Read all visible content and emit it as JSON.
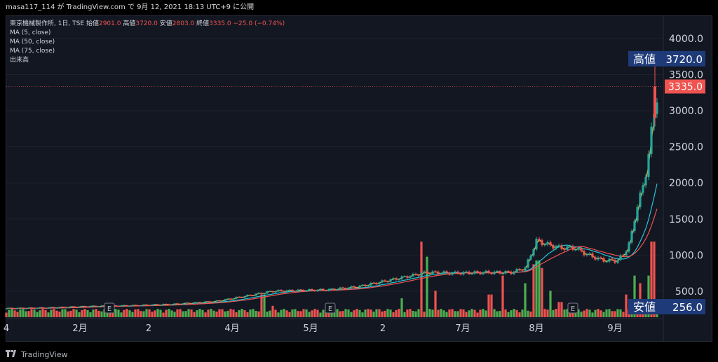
{
  "header": {
    "publish_line": "masa117_114 が TradingView.com で 9月 12, 2021 18:13 UTC+9 に公開"
  },
  "legend": {
    "symbol_line": "東京機械製作所, 1日, TSE",
    "open_label": "始値",
    "open_value": "2901.0",
    "high_label": "高値",
    "high_value": "3720.0",
    "low_label": "安値",
    "low_value": "2803.0",
    "close_label": "終値",
    "close_value": "3335.0",
    "change": "−25.0 (−0.74%)",
    "ma5": "MA (5, close)",
    "ma50": "MA (50, close)",
    "ma75": "MA (75, close)",
    "volume": "出来高"
  },
  "price_labels": {
    "high_label": "高値",
    "high_value": "3720.0",
    "low_label": "安値",
    "low_value": "256.0",
    "last_value": "3335.0"
  },
  "footer": {
    "brand": "TradingView"
  },
  "colors": {
    "up": "#26a69a",
    "down": "#ef5350",
    "vol_up": "#4caf50",
    "vol_down": "#ef5350",
    "ma5": "#f5c542",
    "ma50": "#26c6da",
    "ma75": "#ef5350",
    "label_bg": "#1e3a78",
    "last_bg": "#ef5350"
  },
  "chart_data": {
    "type": "candlestick",
    "y_ticks": [
      "500.0",
      "1000.0",
      "1500.0",
      "2000.0",
      "2500.0",
      "3000.0",
      "3500.0",
      "4000.0"
    ],
    "y_tick_values": [
      500,
      1000,
      1500,
      2000,
      2500,
      3000,
      3500,
      4000
    ],
    "ylim": [
      150,
      4300
    ],
    "x_ticks": [
      "4",
      "2月",
      "2",
      "4月",
      "5月",
      "2",
      "7月",
      "8月",
      "9月"
    ],
    "x_tick_days": [
      0,
      105,
      203,
      322,
      434,
      537,
      651,
      756,
      868
    ],
    "earnings_markers": [
      "E",
      "E",
      "E"
    ],
    "earnings_days": [
      147,
      462,
      808
    ],
    "ma_series": [
      "MA (5, close)",
      "MA (50, close)",
      "MA (75, close)"
    ],
    "price_path": [
      [
        0,
        260
      ],
      [
        60,
        270
      ],
      [
        120,
        290
      ],
      [
        180,
        300
      ],
      [
        240,
        320
      ],
      [
        300,
        360
      ],
      [
        340,
        430
      ],
      [
        380,
        500
      ],
      [
        420,
        510
      ],
      [
        460,
        520
      ],
      [
        500,
        560
      ],
      [
        560,
        680
      ],
      [
        600,
        760
      ],
      [
        640,
        750
      ],
      [
        680,
        760
      ],
      [
        720,
        760
      ],
      [
        740,
        820
      ],
      [
        756,
        1200
      ],
      [
        770,
        1150
      ],
      [
        790,
        1100
      ],
      [
        810,
        1100
      ],
      [
        830,
        1000
      ],
      [
        850,
        930
      ],
      [
        870,
        920
      ],
      [
        880,
        1000
      ],
      [
        890,
        1200
      ],
      [
        900,
        1700
      ],
      [
        910,
        2000
      ],
      [
        920,
        2700
      ],
      [
        930,
        3335
      ]
    ],
    "volume_spikes": [
      [
        366,
        0.3
      ],
      [
        380,
        0.15
      ],
      [
        420,
        0.05
      ],
      [
        520,
        0.1
      ],
      [
        565,
        0.25
      ],
      [
        592,
        1.0
      ],
      [
        600,
        0.8
      ],
      [
        612,
        0.35
      ],
      [
        690,
        0.3
      ],
      [
        707,
        0.55
      ],
      [
        740,
        0.45
      ],
      [
        752,
        0.7
      ],
      [
        758,
        0.75
      ],
      [
        765,
        0.65
      ],
      [
        775,
        0.35
      ],
      [
        790,
        0.2
      ],
      [
        845,
        0.1
      ],
      [
        885,
        0.3
      ],
      [
        895,
        0.55
      ],
      [
        905,
        0.45
      ],
      [
        915,
        0.55
      ],
      [
        922,
        1.0
      ]
    ]
  }
}
